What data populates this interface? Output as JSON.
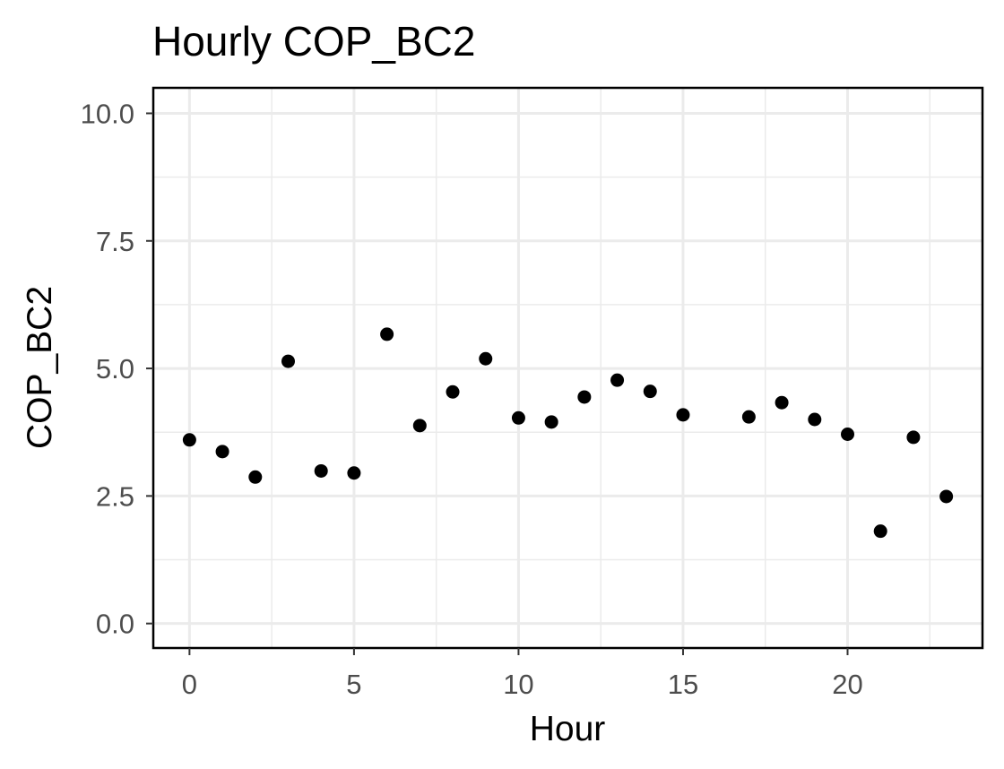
{
  "chart_data": {
    "type": "scatter",
    "title": "Hourly COP_BC2",
    "xlabel": "Hour",
    "ylabel": "COP_BC2",
    "xlim": [
      -1.1,
      24.1
    ],
    "ylim": [
      -0.48,
      10.5
    ],
    "x_ticks": [
      0,
      5,
      10,
      15,
      20
    ],
    "x_tick_labels": [
      "0",
      "5",
      "10",
      "15",
      "20"
    ],
    "y_ticks": [
      0,
      2.5,
      5,
      7.5,
      10
    ],
    "y_tick_labels": [
      "0.0",
      "2.5",
      "5.0",
      "7.5",
      "10.0"
    ],
    "grid": true,
    "legend": "none",
    "series": [
      {
        "name": "COP_BC2",
        "x": [
          0,
          1,
          2,
          3,
          4,
          5,
          6,
          7,
          8,
          9,
          10,
          11,
          12,
          13,
          14,
          15,
          17,
          18,
          19,
          20,
          21,
          22,
          23
        ],
        "y": [
          3.6,
          3.37,
          2.87,
          5.14,
          2.99,
          2.95,
          5.67,
          3.88,
          4.54,
          5.19,
          4.03,
          3.95,
          4.44,
          4.77,
          4.55,
          4.09,
          4.05,
          4.33,
          4.0,
          3.71,
          1.81,
          3.65,
          2.49
        ]
      }
    ],
    "colors": {
      "point": "#000000",
      "grid": "#ebebeb",
      "tick_text": "#4d4d4d"
    }
  }
}
